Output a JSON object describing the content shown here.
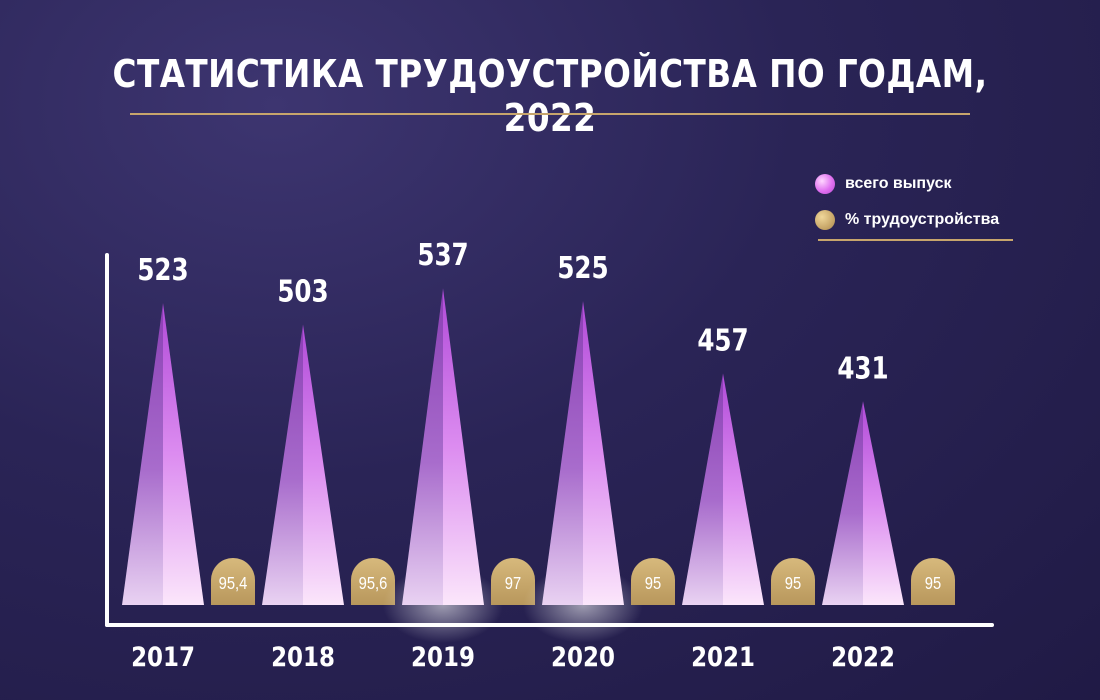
{
  "title": "СТАТИСТИКА ТРУДОУСТРОЙСТВА ПО ГОДАМ, 2022",
  "legend": {
    "total_label": "всего выпуск",
    "percent_label": "% трудоустройства"
  },
  "colors": {
    "accent_gold": "#c7a56c",
    "purple": "#c96ee0",
    "background": "#2a2456"
  },
  "chart_data": {
    "type": "bar",
    "categories": [
      "2017",
      "2018",
      "2019",
      "2020",
      "2021",
      "2022"
    ],
    "series": [
      {
        "name": "всего выпуск",
        "values": [
          523,
          503,
          537,
          525,
          457,
          431
        ],
        "labels": [
          "523",
          "503",
          "537",
          "525",
          "457",
          "431"
        ]
      },
      {
        "name": "% трудоустройства",
        "values": [
          95.4,
          95.6,
          97,
          95,
          95,
          95
        ],
        "labels": [
          "95,4",
          "95,6",
          "97",
          "95",
          "95",
          "95"
        ]
      }
    ],
    "ylim": [
      0,
      600
    ],
    "grid": false,
    "legend_position": "top-right"
  }
}
